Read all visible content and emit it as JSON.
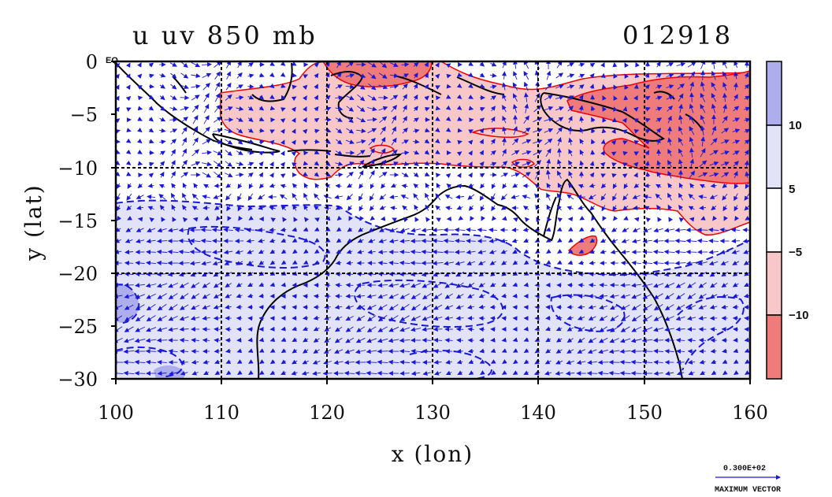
{
  "title": {
    "variable": "u uv 850 mb",
    "date": "012918"
  },
  "equator_label": "EQ",
  "chart_data": {
    "type": "contour-map",
    "xlabel": "x (lon)",
    "ylabel": "y (lat)",
    "xlim": [
      100,
      160
    ],
    "ylim": [
      -30,
      0
    ],
    "x_ticks": [
      "100",
      "110",
      "120",
      "130",
      "140",
      "150",
      "160"
    ],
    "y_ticks": [
      "0",
      "−5",
      "−10",
      "−15",
      "−20",
      "−25",
      "−30"
    ],
    "colorbar": {
      "ticks": [
        "10",
        "5",
        "−5",
        "−10"
      ],
      "levels": [
        -10,
        -5,
        5,
        10
      ],
      "colors": [
        "#ef7b7b",
        "#f8c8c8",
        "#ffffff",
        "#e2e2f8",
        "#aeaeee"
      ]
    },
    "positive_contour_color": "#ee0000",
    "negative_contour_color": "#1a1ad6",
    "vector_color": "#1a1ad6",
    "coastline_color": "#000000",
    "reference_vector": {
      "value": "0.300E+02",
      "label": "MAXIMUM VECTOR"
    }
  }
}
